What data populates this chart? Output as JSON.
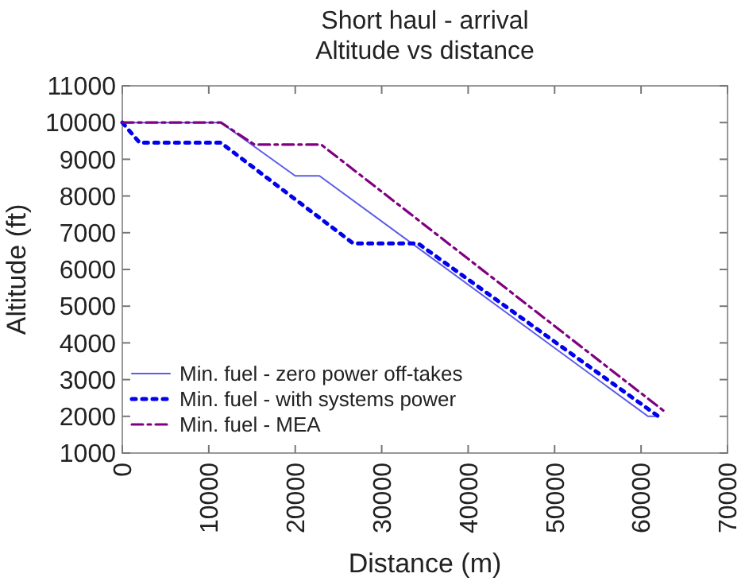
{
  "chart_data": {
    "type": "line",
    "title": "Short haul - arrival\nAltitude vs distance",
    "xlabel": "Distance (m)",
    "ylabel": "Altitude (ft)",
    "xlim": [
      0,
      70000
    ],
    "xticks": [
      0,
      10000,
      20000,
      30000,
      40000,
      50000,
      60000,
      70000
    ],
    "ylim": [
      1000,
      11000
    ],
    "yticks": [
      1000,
      2000,
      3000,
      4000,
      5000,
      6000,
      7000,
      8000,
      9000,
      10000,
      11000
    ],
    "legend": "bottom left",
    "grid": false,
    "series": [
      {
        "name": "Min. fuel - zero power off-takes",
        "color": "#5b5bea",
        "line_style": "solid",
        "x": [
          0,
          11400,
          20000,
          22800,
          60800,
          62000
        ],
        "values": [
          10000,
          10000,
          8550,
          8550,
          2000,
          2000
        ]
      },
      {
        "name": "Min. fuel - with systems power",
        "color": "#0000ee",
        "line_style": "dotted",
        "x": [
          0,
          1100,
          2000,
          11400,
          26700,
          34200,
          62000
        ],
        "values": [
          10000,
          9700,
          9450,
          9450,
          6710,
          6710,
          2000
        ]
      },
      {
        "name": "Min. fuel - MEA",
        "color": "#800080",
        "line_style": "dashed",
        "x": [
          0,
          11400,
          15300,
          23000,
          63000
        ],
        "values": [
          10000,
          10000,
          9400,
          9400,
          2080
        ]
      }
    ]
  }
}
